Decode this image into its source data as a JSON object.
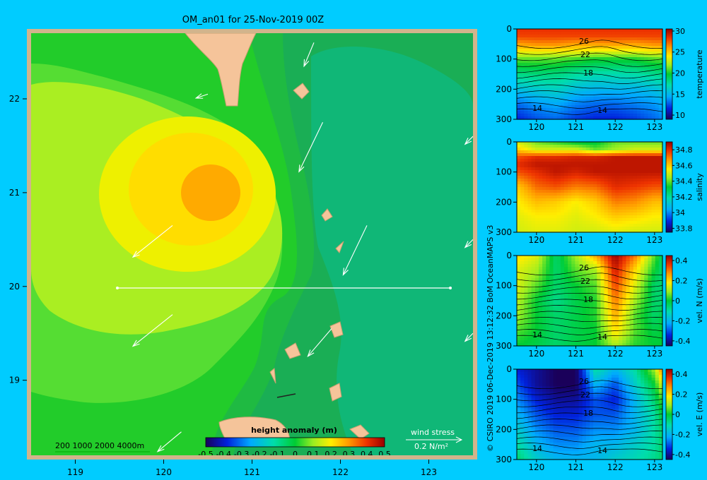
{
  "title": "OM_an01 for 25-Nov-2019 00Z",
  "credit": "© CSIRO 2019   06-Dec-2019 13:12:32 BoM OceanMAPS v3",
  "map": {
    "x_ticks": [
      "119",
      "120",
      "121",
      "122",
      "123"
    ],
    "y_ticks": [
      "22",
      "21",
      "20",
      "19"
    ],
    "isobath_legend": "200  1000  2000  4000m",
    "wind_label": "wind stress",
    "wind_scale": "0.2 N/m²",
    "colorbar": {
      "title": "height anomaly (m)",
      "ticks": [
        "-0.5",
        "-0.4",
        "-0.3",
        "-0.2",
        "-0.1",
        "0",
        "0.1",
        "0.2",
        "0.3",
        "0.4",
        "0.5"
      ]
    },
    "transect": {
      "lat": 20,
      "lon_start": 119.5,
      "lon_end": 123.2
    }
  },
  "sections": [
    {
      "label": "temperature",
      "yticks": [
        "0",
        "100",
        "200",
        "300"
      ],
      "xticks": [
        "120",
        "121",
        "122",
        "123"
      ],
      "cbar_ticks": [
        "30",
        "25",
        "20",
        "15",
        "10"
      ],
      "contour_labels": [
        "26",
        "22",
        "18",
        "14",
        "14"
      ]
    },
    {
      "label": "salinity",
      "yticks": [
        "0",
        "100",
        "200",
        "300"
      ],
      "xticks": [
        "120",
        "121",
        "122",
        "123"
      ],
      "cbar_ticks": [
        "34.8",
        "34.6",
        "34.4",
        "34.2",
        "34",
        "33.8"
      ],
      "contour_labels": []
    },
    {
      "label": "vel. N  (m/s)",
      "yticks": [
        "0",
        "100",
        "200",
        "300"
      ],
      "xticks": [
        "120",
        "121",
        "122",
        "123"
      ],
      "cbar_ticks": [
        "0.4",
        "0.2",
        "0",
        "-0.2",
        "-0.4"
      ],
      "contour_labels": [
        "26",
        "22",
        "18",
        "14",
        "14"
      ]
    },
    {
      "label": "vel. E  (m/s)",
      "yticks": [
        "0",
        "100",
        "200",
        "300"
      ],
      "xticks": [
        "120",
        "121",
        "122",
        "123"
      ],
      "cbar_ticks": [
        "0.4",
        "0.2",
        "0",
        "-0.2",
        "-0.4"
      ],
      "contour_labels": [
        "26",
        "22",
        "18",
        "14",
        "14"
      ]
    }
  ],
  "chart_data": [
    {
      "type": "heatmap",
      "title": "OM_an01 for 25-Nov-2019 00Z",
      "variable": "height anomaly (m)",
      "xlim": [
        118.5,
        123.5
      ],
      "ylim": [
        18.2,
        22.7
      ],
      "clim": [
        -0.5,
        0.5
      ],
      "features": [
        {
          "name": "anticyclonic eddy",
          "lon": 120.55,
          "lat": 20.95,
          "max_value": 0.3
        }
      ],
      "transect": {
        "lat": 20,
        "lon": [
          119.5,
          123.2
        ]
      },
      "wind_stress_vectors": [
        {
          "lon": 122.3,
          "lat": 20.65,
          "u": -0.12,
          "v": -0.25
        },
        {
          "lon": 121.8,
          "lat": 21.75,
          "u": -0.12,
          "v": -0.25
        },
        {
          "lon": 120.1,
          "lat": 20.65,
          "u": -0.2,
          "v": -0.16
        },
        {
          "lon": 120.5,
          "lat": 22.05,
          "u": -0.06,
          "v": -0.02
        },
        {
          "lon": 120.1,
          "lat": 19.7,
          "u": -0.2,
          "v": -0.16
        },
        {
          "lon": 121.9,
          "lat": 19.55,
          "u": -0.12,
          "v": -0.14
        },
        {
          "lon": 121.7,
          "lat": 22.6,
          "u": -0.05,
          "v": -0.12
        },
        {
          "lon": 123.5,
          "lat": 21.6,
          "u": -0.04,
          "v": -0.04
        },
        {
          "lon": 123.5,
          "lat": 20.5,
          "u": -0.04,
          "v": -0.04
        },
        {
          "lon": 123.5,
          "lat": 19.5,
          "u": -0.04,
          "v": -0.04
        },
        {
          "lon": 120.2,
          "lat": 18.45,
          "u": -0.12,
          "v": -0.1
        }
      ]
    },
    {
      "type": "heatmap",
      "title": "temperature",
      "x": [
        119.5,
        120,
        120.5,
        121,
        121.5,
        122,
        122.5,
        123,
        123.2
      ],
      "depth": [
        0,
        25,
        50,
        75,
        100,
        150,
        200,
        250,
        300
      ],
      "xlim": [
        119.5,
        123.2
      ],
      "ylim": [
        300,
        0
      ],
      "clim": [
        9,
        30.5
      ],
      "values": [
        [
          28.5,
          28.5,
          28.5,
          28.5,
          28.5,
          28.5,
          28.5,
          28.5,
          28.5
        ],
        [
          28,
          28,
          28,
          28,
          28,
          28,
          28,
          28,
          28
        ],
        [
          26,
          26.5,
          26.5,
          26,
          26,
          26.2,
          26,
          26.5,
          26.5
        ],
        [
          24,
          24,
          24,
          23.8,
          23.5,
          23.5,
          23.5,
          24,
          24
        ],
        [
          21,
          21,
          21,
          20.5,
          20,
          20,
          20,
          20.8,
          21
        ],
        [
          18,
          18.3,
          18.2,
          17.5,
          17,
          17,
          17.2,
          17.8,
          18
        ],
        [
          15.5,
          16,
          16.5,
          15.5,
          15,
          15,
          15,
          15.5,
          16
        ],
        [
          13,
          14,
          14.5,
          13.5,
          13,
          13,
          13.5,
          14,
          14.5
        ],
        [
          11.5,
          12.5,
          13,
          12,
          11.5,
          11.5,
          12,
          13,
          13.5
        ]
      ]
    },
    {
      "type": "heatmap",
      "title": "salinity",
      "x": [
        119.5,
        120,
        120.5,
        121,
        121.5,
        122,
        122.5,
        123,
        123.2
      ],
      "depth": [
        0,
        25,
        50,
        75,
        100,
        150,
        200,
        250,
        300
      ],
      "xlim": [
        119.5,
        123.2
      ],
      "ylim": [
        300,
        0
      ],
      "clim": [
        33.75,
        34.9
      ],
      "values": [
        [
          34.5,
          34.4,
          34.35,
          34.3,
          34.3,
          34.4,
          34.4,
          34.4,
          34.4
        ],
        [
          34.6,
          34.5,
          34.5,
          34.5,
          34.4,
          34.45,
          34.5,
          34.5,
          34.5
        ],
        [
          34.75,
          34.8,
          34.8,
          34.82,
          34.82,
          34.85,
          34.85,
          34.85,
          34.85
        ],
        [
          34.8,
          34.85,
          34.85,
          34.85,
          34.85,
          34.85,
          34.85,
          34.85,
          34.85
        ],
        [
          34.75,
          34.8,
          34.85,
          34.82,
          34.85,
          34.85,
          34.85,
          34.85,
          34.85
        ],
        [
          34.6,
          34.72,
          34.75,
          34.7,
          34.72,
          34.8,
          34.78,
          34.75,
          34.75
        ],
        [
          34.55,
          34.62,
          34.6,
          34.55,
          34.6,
          34.7,
          34.68,
          34.62,
          34.62
        ],
        [
          34.52,
          34.55,
          34.55,
          34.52,
          34.55,
          34.6,
          34.58,
          34.55,
          34.55
        ],
        [
          34.5,
          34.52,
          34.52,
          34.5,
          34.5,
          34.52,
          34.5,
          34.5,
          34.5
        ]
      ]
    },
    {
      "type": "heatmap",
      "title": "vel. N  (m/s)",
      "x": [
        119.5,
        120,
        120.5,
        121,
        121.5,
        122,
        122.5,
        123,
        123.2
      ],
      "depth": [
        0,
        50,
        100,
        150,
        200,
        250,
        300
      ],
      "xlim": [
        119.5,
        123.2
      ],
      "ylim": [
        300,
        0
      ],
      "clim": [
        -0.45,
        0.45
      ],
      "values": [
        [
          0.2,
          0.15,
          -0.05,
          0.1,
          0.25,
          0.45,
          0.3,
          0.05,
          -0.05
        ],
        [
          0.15,
          0.1,
          -0.05,
          0.05,
          0.1,
          0.4,
          0.2,
          0.0,
          -0.05
        ],
        [
          0.15,
          0.05,
          -0.05,
          0.0,
          0.05,
          0.35,
          0.15,
          -0.05,
          -0.05
        ],
        [
          0.12,
          0.0,
          -0.08,
          -0.02,
          0.02,
          0.3,
          0.1,
          -0.05,
          -0.05
        ],
        [
          0.1,
          0.0,
          -0.05,
          -0.02,
          0.02,
          0.25,
          0.05,
          -0.05,
          -0.02
        ],
        [
          0.05,
          0.0,
          -0.05,
          -0.02,
          0.0,
          0.2,
          0.05,
          -0.02,
          0.0
        ],
        [
          0.0,
          -0.02,
          -0.05,
          -0.02,
          0.0,
          0.1,
          0.02,
          0.0,
          0.0
        ]
      ]
    },
    {
      "type": "heatmap",
      "title": "vel. E  (m/s)",
      "x": [
        119.5,
        120,
        120.5,
        121,
        121.5,
        122,
        122.5,
        123,
        123.2
      ],
      "depth": [
        0,
        50,
        100,
        150,
        200,
        250,
        300
      ],
      "xlim": [
        119.5,
        123.2
      ],
      "ylim": [
        300,
        0
      ],
      "clim": [
        -0.45,
        0.45
      ],
      "values": [
        [
          -0.35,
          -0.4,
          -0.45,
          -0.45,
          -0.1,
          -0.2,
          -0.1,
          0.1,
          0.3
        ],
        [
          -0.3,
          -0.4,
          -0.45,
          -0.45,
          -0.2,
          -0.3,
          -0.15,
          0.0,
          0.15
        ],
        [
          -0.25,
          -0.35,
          -0.4,
          -0.4,
          -0.3,
          -0.35,
          -0.2,
          -0.05,
          0.05
        ],
        [
          -0.2,
          -0.3,
          -0.35,
          -0.35,
          -0.3,
          -0.3,
          -0.2,
          -0.1,
          0.0
        ],
        [
          -0.15,
          -0.25,
          -0.3,
          -0.3,
          -0.25,
          -0.25,
          -0.2,
          -0.1,
          -0.05
        ],
        [
          -0.1,
          -0.2,
          -0.25,
          -0.25,
          -0.2,
          -0.2,
          -0.15,
          -0.1,
          -0.05
        ],
        [
          -0.05,
          -0.15,
          -0.2,
          -0.2,
          -0.2,
          -0.15,
          -0.12,
          -0.08,
          -0.05
        ]
      ]
    }
  ]
}
